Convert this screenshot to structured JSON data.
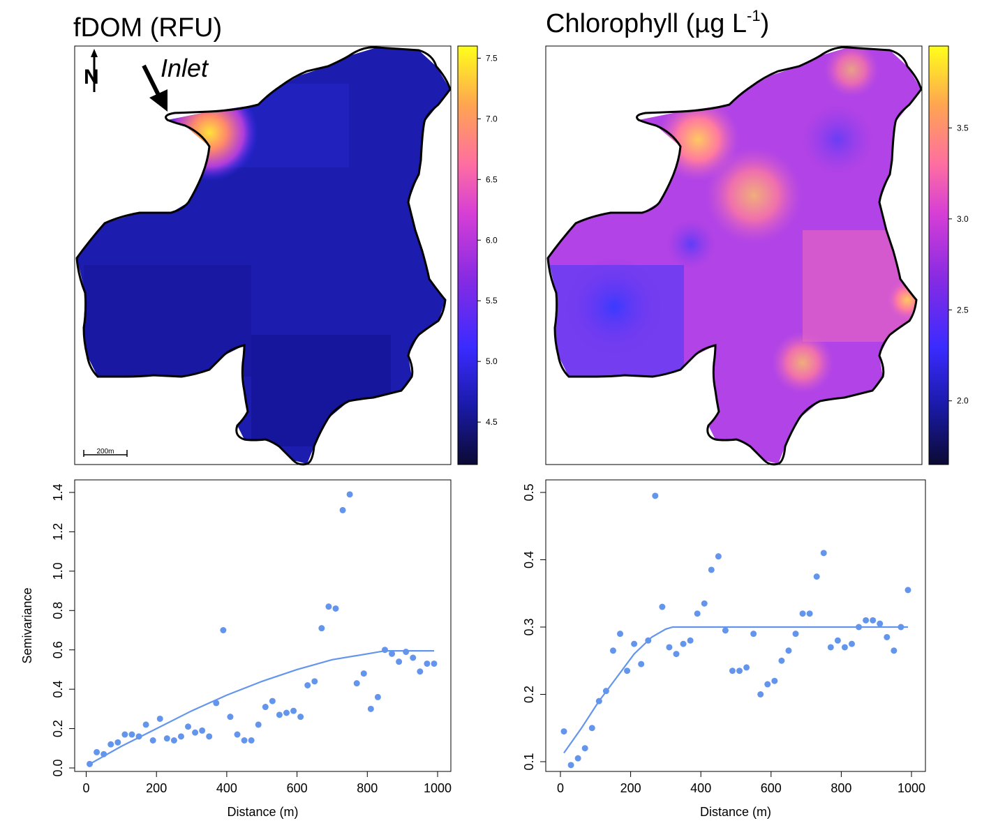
{
  "colors": {
    "viridis_low": "#0d0c3a",
    "point_color": "#6495ed",
    "fit_line": "#6495ed",
    "outline": "#000000",
    "colorbar_stops": [
      "#0b0a33",
      "#1a1aa8",
      "#3a2bff",
      "#8a2be2",
      "#d63fd6",
      "#ff6fa0",
      "#ffa550",
      "#ffff1a"
    ]
  },
  "maps": [
    {
      "title_main": "fDOM (RFU)",
      "title_unit_sup": "",
      "annotation": "Inlet",
      "north_label": "N",
      "scale_label": "200m",
      "colorbar_ticks": [
        "4.5",
        "5.0",
        "5.5",
        "6.0",
        "6.5",
        "7.0",
        "7.5"
      ],
      "colorbar_range": [
        4.15,
        7.6
      ],
      "base_value": 4.55,
      "base_color": "#1e1eb4"
    },
    {
      "title_main": "Chlorophyll (µg L",
      "title_unit_sup": "-1",
      "title_close": ")",
      "colorbar_ticks": [
        "2.0",
        "2.5",
        "3.0",
        "3.5"
      ],
      "colorbar_range": [
        1.65,
        3.95
      ],
      "base_value": 2.75,
      "base_color": "#a63be8"
    }
  ],
  "chart_data": [
    {
      "type": "scatter",
      "title": "",
      "xlabel": "Distance (m)",
      "ylabel": "Semivariance",
      "xlim": [
        0,
        1000
      ],
      "ylim": [
        0,
        1.4
      ],
      "xticks": [
        "0",
        "200",
        "400",
        "600",
        "800",
        "1000"
      ],
      "yticks": [
        "0.0",
        "0.2",
        "0.4",
        "0.6",
        "0.8",
        "1.0",
        "1.2",
        "1.4"
      ],
      "points": [
        [
          10,
          0.02
        ],
        [
          30,
          0.08
        ],
        [
          50,
          0.07
        ],
        [
          70,
          0.12
        ],
        [
          90,
          0.13
        ],
        [
          110,
          0.17
        ],
        [
          130,
          0.17
        ],
        [
          150,
          0.16
        ],
        [
          170,
          0.22
        ],
        [
          190,
          0.14
        ],
        [
          210,
          0.25
        ],
        [
          230,
          0.15
        ],
        [
          250,
          0.14
        ],
        [
          270,
          0.16
        ],
        [
          290,
          0.21
        ],
        [
          310,
          0.18
        ],
        [
          330,
          0.19
        ],
        [
          350,
          0.16
        ],
        [
          370,
          0.33
        ],
        [
          390,
          0.7
        ],
        [
          410,
          0.26
        ],
        [
          430,
          0.17
        ],
        [
          450,
          0.14
        ],
        [
          470,
          0.14
        ],
        [
          490,
          0.22
        ],
        [
          510,
          0.31
        ],
        [
          530,
          0.34
        ],
        [
          550,
          0.27
        ],
        [
          570,
          0.28
        ],
        [
          590,
          0.29
        ],
        [
          610,
          0.26
        ],
        [
          630,
          0.42
        ],
        [
          650,
          0.44
        ],
        [
          670,
          0.71
        ],
        [
          690,
          0.82
        ],
        [
          710,
          0.81
        ],
        [
          730,
          1.31
        ],
        [
          750,
          1.39
        ],
        [
          770,
          0.43
        ],
        [
          790,
          0.48
        ],
        [
          810,
          0.3
        ],
        [
          830,
          0.36
        ],
        [
          850,
          0.6
        ],
        [
          870,
          0.58
        ],
        [
          890,
          0.54
        ],
        [
          910,
          0.59
        ],
        [
          930,
          0.56
        ],
        [
          950,
          0.49
        ],
        [
          970,
          0.53
        ],
        [
          990,
          0.53
        ]
      ],
      "fit_line": [
        [
          10,
          0.02
        ],
        [
          100,
          0.11
        ],
        [
          200,
          0.2
        ],
        [
          300,
          0.29
        ],
        [
          400,
          0.37
        ],
        [
          500,
          0.44
        ],
        [
          600,
          0.5
        ],
        [
          700,
          0.55
        ],
        [
          800,
          0.58
        ],
        [
          850,
          0.595
        ],
        [
          990,
          0.595
        ]
      ]
    },
    {
      "type": "scatter",
      "title": "",
      "xlabel": "Distance (m)",
      "ylabel": "",
      "xlim": [
        0,
        1000
      ],
      "ylim": [
        0.1,
        0.5
      ],
      "xticks": [
        "0",
        "200",
        "400",
        "600",
        "800",
        "1000"
      ],
      "yticks": [
        "0.1",
        "0.2",
        "0.3",
        "0.4",
        "0.5"
      ],
      "points": [
        [
          10,
          0.145
        ],
        [
          30,
          0.095
        ],
        [
          50,
          0.105
        ],
        [
          70,
          0.12
        ],
        [
          90,
          0.15
        ],
        [
          110,
          0.19
        ],
        [
          130,
          0.205
        ],
        [
          150,
          0.265
        ],
        [
          170,
          0.29
        ],
        [
          190,
          0.235
        ],
        [
          210,
          0.275
        ],
        [
          230,
          0.245
        ],
        [
          250,
          0.28
        ],
        [
          270,
          0.495
        ],
        [
          290,
          0.33
        ],
        [
          310,
          0.27
        ],
        [
          330,
          0.26
        ],
        [
          350,
          0.275
        ],
        [
          370,
          0.28
        ],
        [
          390,
          0.32
        ],
        [
          410,
          0.335
        ],
        [
          430,
          0.385
        ],
        [
          450,
          0.405
        ],
        [
          470,
          0.295
        ],
        [
          490,
          0.235
        ],
        [
          510,
          0.235
        ],
        [
          530,
          0.24
        ],
        [
          550,
          0.29
        ],
        [
          570,
          0.2
        ],
        [
          590,
          0.215
        ],
        [
          610,
          0.22
        ],
        [
          630,
          0.25
        ],
        [
          650,
          0.265
        ],
        [
          670,
          0.29
        ],
        [
          690,
          0.32
        ],
        [
          710,
          0.32
        ],
        [
          730,
          0.375
        ],
        [
          750,
          0.41
        ],
        [
          770,
          0.27
        ],
        [
          790,
          0.28
        ],
        [
          810,
          0.27
        ],
        [
          830,
          0.275
        ],
        [
          850,
          0.3
        ],
        [
          870,
          0.31
        ],
        [
          890,
          0.31
        ],
        [
          910,
          0.305
        ],
        [
          930,
          0.285
        ],
        [
          950,
          0.265
        ],
        [
          970,
          0.3
        ],
        [
          990,
          0.355
        ]
      ],
      "fit_line": [
        [
          10,
          0.113
        ],
        [
          60,
          0.15
        ],
        [
          110,
          0.19
        ],
        [
          160,
          0.225
        ],
        [
          210,
          0.26
        ],
        [
          260,
          0.285
        ],
        [
          300,
          0.297
        ],
        [
          320,
          0.3
        ],
        [
          990,
          0.3
        ]
      ]
    }
  ]
}
